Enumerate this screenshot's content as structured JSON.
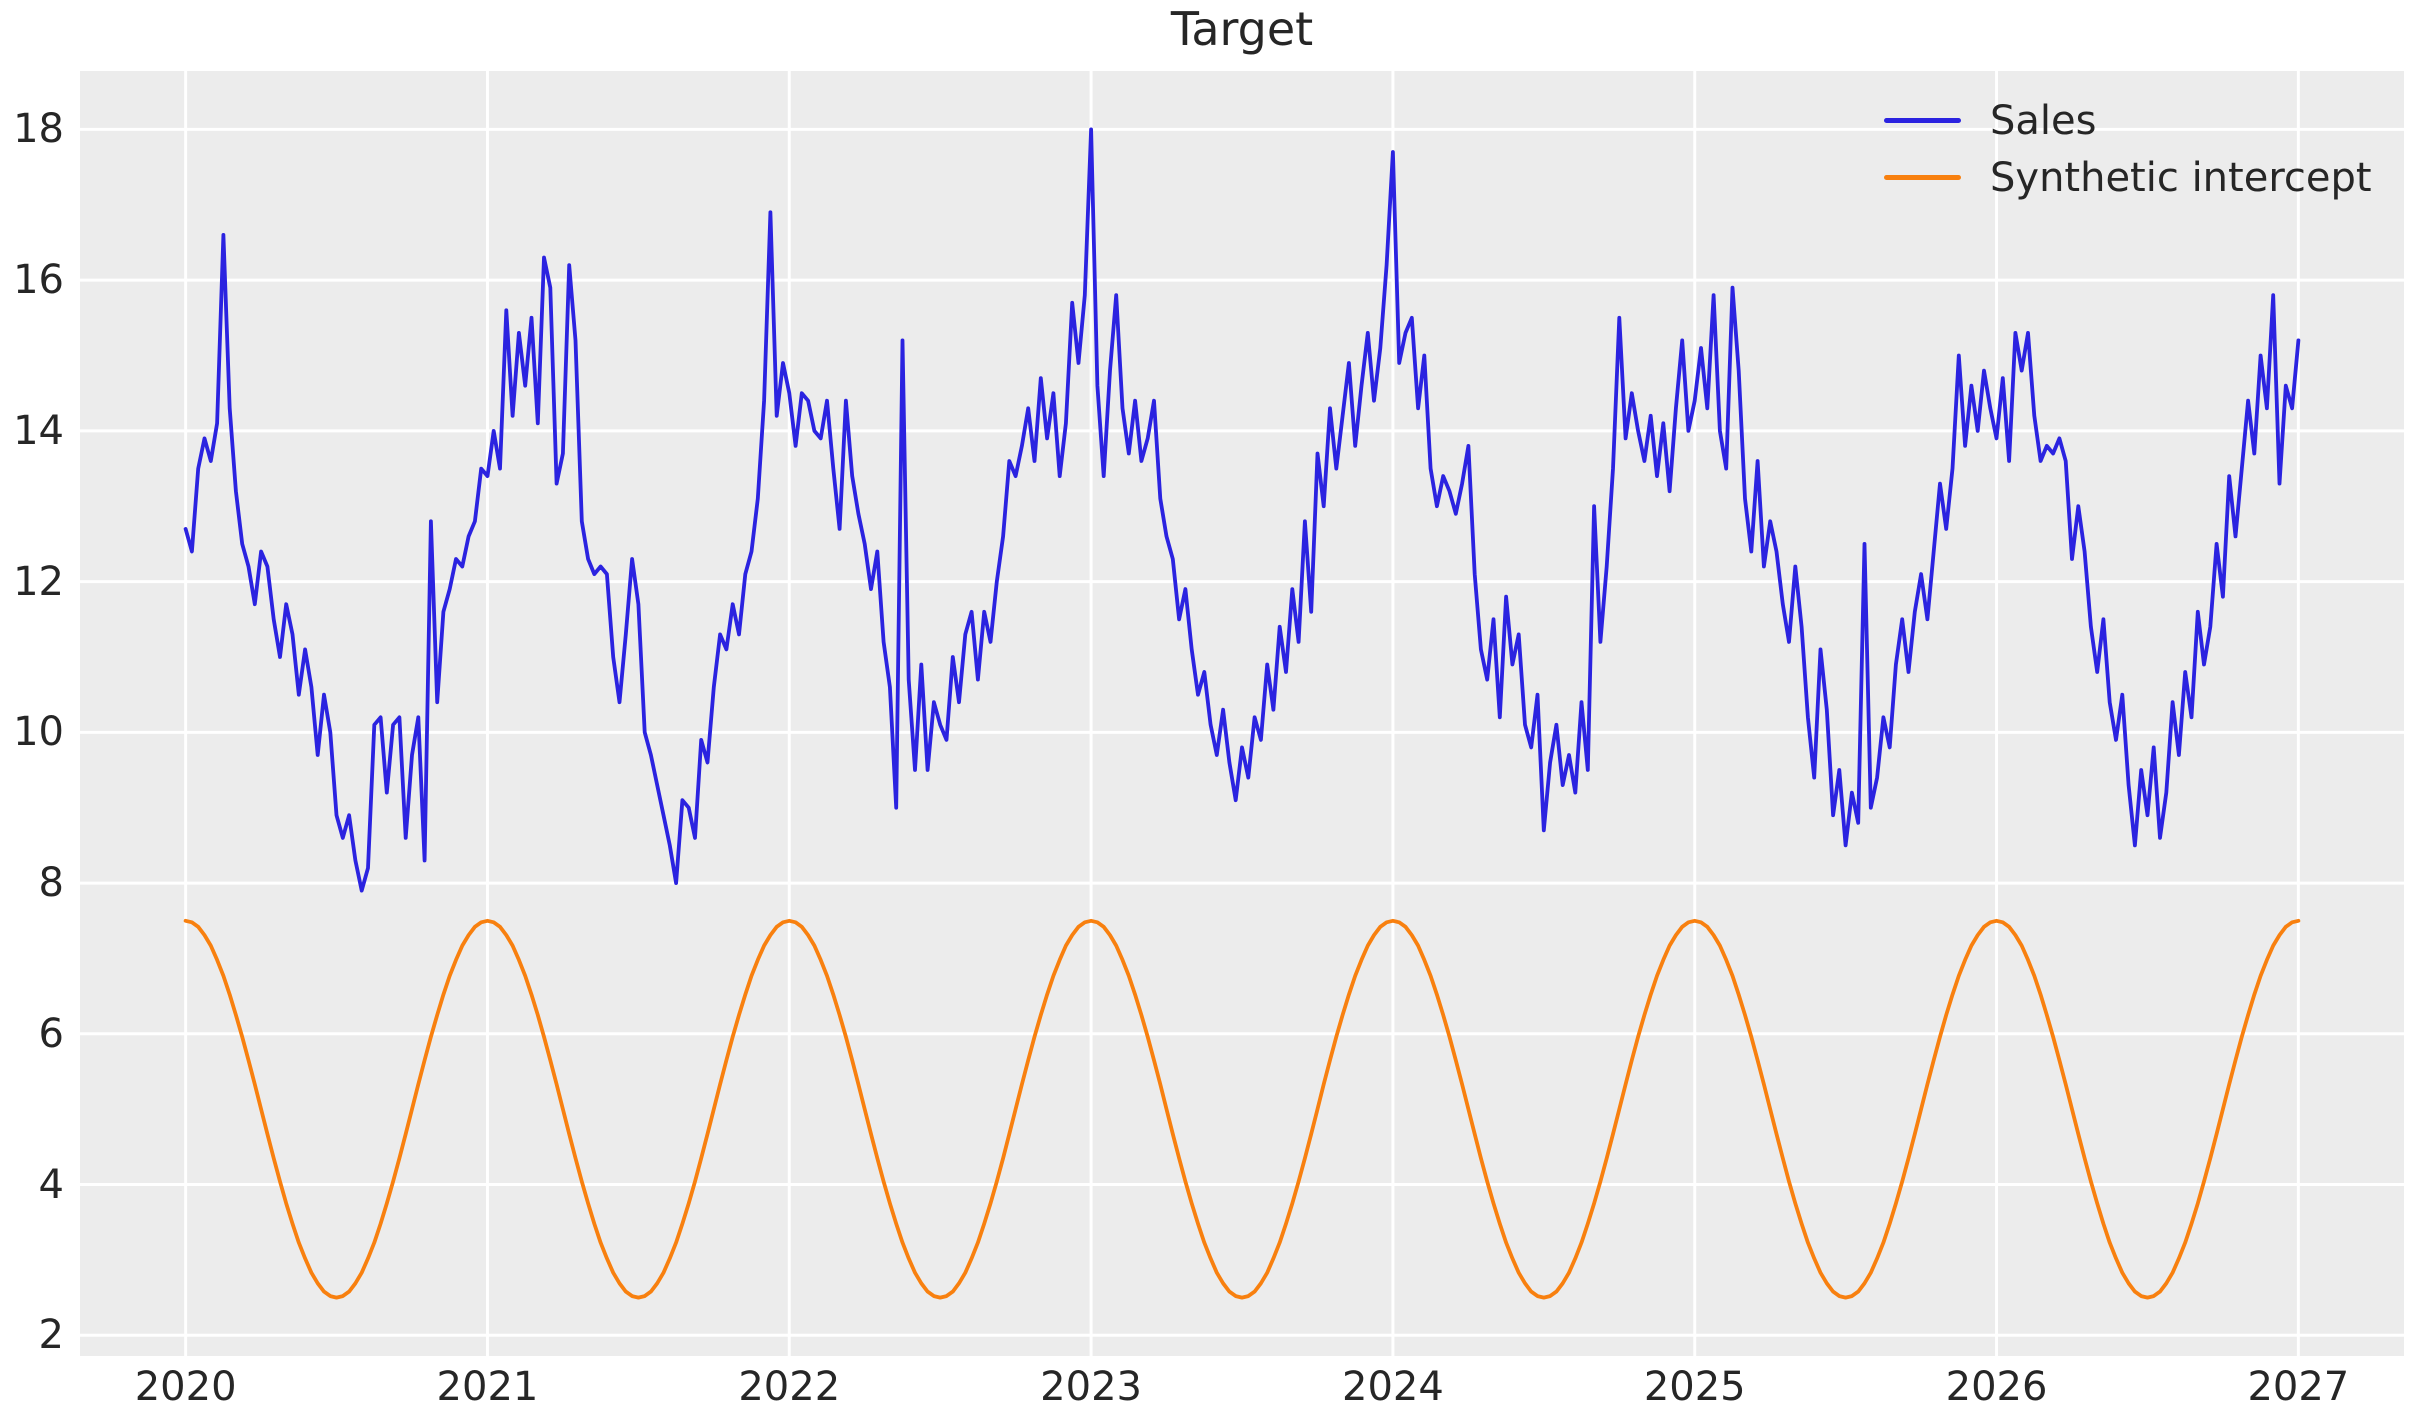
{
  "title": "Target",
  "chart_data": {
    "type": "line",
    "title": "Target",
    "grid": true,
    "x_axis": {
      "lim": [
        2019.65,
        2027.35
      ],
      "tick_labels": [
        "2020",
        "2021",
        "2022",
        "2023",
        "2024",
        "2025",
        "2026",
        "2027"
      ],
      "unit": "year"
    },
    "y_axis": {
      "lim": [
        1.725,
        18.775
      ],
      "tick_labels": [
        "2",
        "4",
        "6",
        "8",
        "10",
        "12",
        "14",
        "16",
        "18"
      ]
    },
    "legend": {
      "position": "upper right",
      "frame": false
    },
    "x_start": 2020,
    "x_end": 2027,
    "points_per_year": 48,
    "style": {
      "plot_bg": "#ececec",
      "grid_color": "#ffffff",
      "text_color": "#262626",
      "figure_bg": "#ffffff",
      "line_width": 3.8
    },
    "series": [
      {
        "name": "Sales",
        "color": "#2b23e0",
        "values": [
          12.7,
          12.4,
          13.5,
          13.9,
          13.6,
          14.1,
          16.6,
          14.3,
          13.2,
          12.5,
          12.2,
          11.7,
          12.4,
          12.2,
          11.5,
          11.0,
          11.7,
          11.3,
          10.5,
          11.1,
          10.6,
          9.7,
          10.5,
          10.0,
          8.9,
          8.6,
          8.9,
          8.3,
          7.9,
          8.2,
          10.1,
          10.2,
          9.2,
          10.1,
          10.2,
          8.6,
          9.7,
          10.2,
          8.3,
          12.8,
          10.4,
          11.6,
          11.9,
          12.3,
          12.2,
          12.6,
          12.8,
          13.5,
          13.4,
          14.0,
          13.5,
          15.6,
          14.2,
          15.3,
          14.6,
          15.5,
          14.1,
          16.3,
          15.9,
          13.3,
          13.7,
          16.2,
          15.2,
          12.8,
          12.3,
          12.1,
          12.2,
          12.1,
          11.0,
          10.4,
          11.3,
          12.3,
          11.7,
          10.0,
          9.7,
          9.3,
          8.9,
          8.5,
          8.0,
          9.1,
          9.0,
          8.6,
          9.9,
          9.6,
          10.6,
          11.3,
          11.1,
          11.7,
          11.3,
          12.1,
          12.4,
          13.1,
          14.4,
          16.9,
          14.2,
          14.9,
          14.5,
          13.8,
          14.5,
          14.4,
          14.0,
          13.9,
          14.4,
          13.5,
          12.7,
          14.4,
          13.4,
          12.9,
          12.5,
          11.9,
          12.4,
          11.2,
          10.6,
          9.0,
          15.2,
          10.7,
          9.5,
          10.9,
          9.5,
          10.4,
          10.1,
          9.9,
          11.0,
          10.4,
          11.3,
          11.6,
          10.7,
          11.6,
          11.2,
          12.0,
          12.6,
          13.6,
          13.4,
          13.8,
          14.3,
          13.6,
          14.7,
          13.9,
          14.5,
          13.4,
          14.1,
          15.7,
          14.9,
          15.8,
          18.0,
          14.6,
          13.4,
          14.8,
          15.8,
          14.3,
          13.7,
          14.4,
          13.6,
          13.9,
          14.4,
          13.1,
          12.6,
          12.3,
          11.5,
          11.9,
          11.1,
          10.5,
          10.8,
          10.1,
          9.7,
          10.3,
          9.6,
          9.1,
          9.8,
          9.4,
          10.2,
          9.9,
          10.9,
          10.3,
          11.4,
          10.8,
          11.9,
          11.2,
          12.8,
          11.6,
          13.7,
          13.0,
          14.3,
          13.5,
          14.2,
          14.9,
          13.8,
          14.6,
          15.3,
          14.4,
          15.1,
          16.2,
          17.7,
          14.9,
          15.3,
          15.5,
          14.3,
          15.0,
          13.5,
          13.0,
          13.4,
          13.2,
          12.9,
          13.3,
          13.8,
          12.1,
          11.1,
          10.7,
          11.5,
          10.2,
          11.8,
          10.9,
          11.3,
          10.1,
          9.8,
          10.5,
          8.7,
          9.6,
          10.1,
          9.3,
          9.7,
          9.2,
          10.4,
          9.5,
          13.0,
          11.2,
          12.2,
          13.5,
          15.5,
          13.9,
          14.5,
          14.0,
          13.6,
          14.2,
          13.4,
          14.1,
          13.2,
          14.3,
          15.2,
          14.0,
          14.4,
          15.1,
          14.3,
          15.8,
          14.0,
          13.5,
          15.9,
          14.8,
          13.1,
          12.4,
          13.6,
          12.2,
          12.8,
          12.4,
          11.7,
          11.2,
          12.2,
          11.4,
          10.2,
          9.4,
          11.1,
          10.3,
          8.9,
          9.5,
          8.5,
          9.2,
          8.8,
          12.5,
          9.0,
          9.4,
          10.2,
          9.8,
          10.9,
          11.5,
          10.8,
          11.6,
          12.1,
          11.5,
          12.4,
          13.3,
          12.7,
          13.5,
          15.0,
          13.8,
          14.6,
          14.0,
          14.8,
          14.3,
          13.9,
          14.7,
          13.6,
          15.3,
          14.8,
          15.3,
          14.2,
          13.6,
          13.8,
          13.7,
          13.9,
          13.6,
          12.3,
          13.0,
          12.4,
          11.4,
          10.8,
          11.5,
          10.4,
          9.9,
          10.5,
          9.3,
          8.5,
          9.5,
          8.9,
          9.8,
          8.6,
          9.2,
          10.4,
          9.7,
          10.8,
          10.2,
          11.6,
          10.9,
          11.4,
          12.5,
          11.8,
          13.4,
          12.6,
          13.5,
          14.4,
          13.7,
          15.0,
          14.3,
          15.8,
          13.3,
          14.6,
          14.3,
          15.2
        ]
      },
      {
        "name": "Synthetic intercept",
        "color": "#f8800f",
        "values": [
          7.5,
          7.48,
          7.42,
          7.31,
          7.17,
          6.98,
          6.77,
          6.52,
          6.25,
          5.96,
          5.65,
          5.33,
          5.0,
          4.67,
          4.35,
          4.04,
          3.75,
          3.48,
          3.23,
          3.02,
          2.83,
          2.69,
          2.58,
          2.52,
          2.5,
          2.52,
          2.58,
          2.69,
          2.83,
          3.02,
          3.23,
          3.48,
          3.75,
          4.04,
          4.35,
          4.67,
          5.0,
          5.33,
          5.65,
          5.96,
          6.25,
          6.52,
          6.77,
          6.98,
          7.17,
          7.31,
          7.42,
          7.48,
          7.5,
          7.48,
          7.42,
          7.31,
          7.17,
          6.98,
          6.77,
          6.52,
          6.25,
          5.96,
          5.65,
          5.33,
          5.0,
          4.67,
          4.35,
          4.04,
          3.75,
          3.48,
          3.23,
          3.02,
          2.83,
          2.69,
          2.58,
          2.52,
          2.5,
          2.52,
          2.58,
          2.69,
          2.83,
          3.02,
          3.23,
          3.48,
          3.75,
          4.04,
          4.35,
          4.67,
          5.0,
          5.33,
          5.65,
          5.96,
          6.25,
          6.52,
          6.77,
          6.98,
          7.17,
          7.31,
          7.42,
          7.48,
          7.5,
          7.48,
          7.42,
          7.31,
          7.17,
          6.98,
          6.77,
          6.52,
          6.25,
          5.96,
          5.65,
          5.33,
          5.0,
          4.67,
          4.35,
          4.04,
          3.75,
          3.48,
          3.23,
          3.02,
          2.83,
          2.69,
          2.58,
          2.52,
          2.5,
          2.52,
          2.58,
          2.69,
          2.83,
          3.02,
          3.23,
          3.48,
          3.75,
          4.04,
          4.35,
          4.67,
          5.0,
          5.33,
          5.65,
          5.96,
          6.25,
          6.52,
          6.77,
          6.98,
          7.17,
          7.31,
          7.42,
          7.48,
          7.5,
          7.48,
          7.42,
          7.31,
          7.17,
          6.98,
          6.77,
          6.52,
          6.25,
          5.96,
          5.65,
          5.33,
          5.0,
          4.67,
          4.35,
          4.04,
          3.75,
          3.48,
          3.23,
          3.02,
          2.83,
          2.69,
          2.58,
          2.52,
          2.5,
          2.52,
          2.58,
          2.69,
          2.83,
          3.02,
          3.23,
          3.48,
          3.75,
          4.04,
          4.35,
          4.67,
          5.0,
          5.33,
          5.65,
          5.96,
          6.25,
          6.52,
          6.77,
          6.98,
          7.17,
          7.31,
          7.42,
          7.48,
          7.5,
          7.48,
          7.42,
          7.31,
          7.17,
          6.98,
          6.77,
          6.52,
          6.25,
          5.96,
          5.65,
          5.33,
          5.0,
          4.67,
          4.35,
          4.04,
          3.75,
          3.48,
          3.23,
          3.02,
          2.83,
          2.69,
          2.58,
          2.52,
          2.5,
          2.52,
          2.58,
          2.69,
          2.83,
          3.02,
          3.23,
          3.48,
          3.75,
          4.04,
          4.35,
          4.67,
          5.0,
          5.33,
          5.65,
          5.96,
          6.25,
          6.52,
          6.77,
          6.98,
          7.17,
          7.31,
          7.42,
          7.48,
          7.5,
          7.48,
          7.42,
          7.31,
          7.17,
          6.98,
          6.77,
          6.52,
          6.25,
          5.96,
          5.65,
          5.33,
          5.0,
          4.67,
          4.35,
          4.04,
          3.75,
          3.48,
          3.23,
          3.02,
          2.83,
          2.69,
          2.58,
          2.52,
          2.5,
          2.52,
          2.58,
          2.69,
          2.83,
          3.02,
          3.23,
          3.48,
          3.75,
          4.04,
          4.35,
          4.67,
          5.0,
          5.33,
          5.65,
          5.96,
          6.25,
          6.52,
          6.77,
          6.98,
          7.17,
          7.31,
          7.42,
          7.48,
          7.5,
          7.48,
          7.42,
          7.31,
          7.17,
          6.98,
          6.77,
          6.52,
          6.25,
          5.96,
          5.65,
          5.33,
          5.0,
          4.67,
          4.35,
          4.04,
          3.75,
          3.48,
          3.23,
          3.02,
          2.83,
          2.69,
          2.58,
          2.52,
          2.5,
          2.52,
          2.58,
          2.69,
          2.83,
          3.02,
          3.23,
          3.48,
          3.75,
          4.04,
          4.35,
          4.67,
          5.0,
          5.33,
          5.65,
          5.96,
          6.25,
          6.52,
          6.77,
          6.98,
          7.17,
          7.31,
          7.42,
          7.48,
          7.5
        ]
      }
    ]
  }
}
